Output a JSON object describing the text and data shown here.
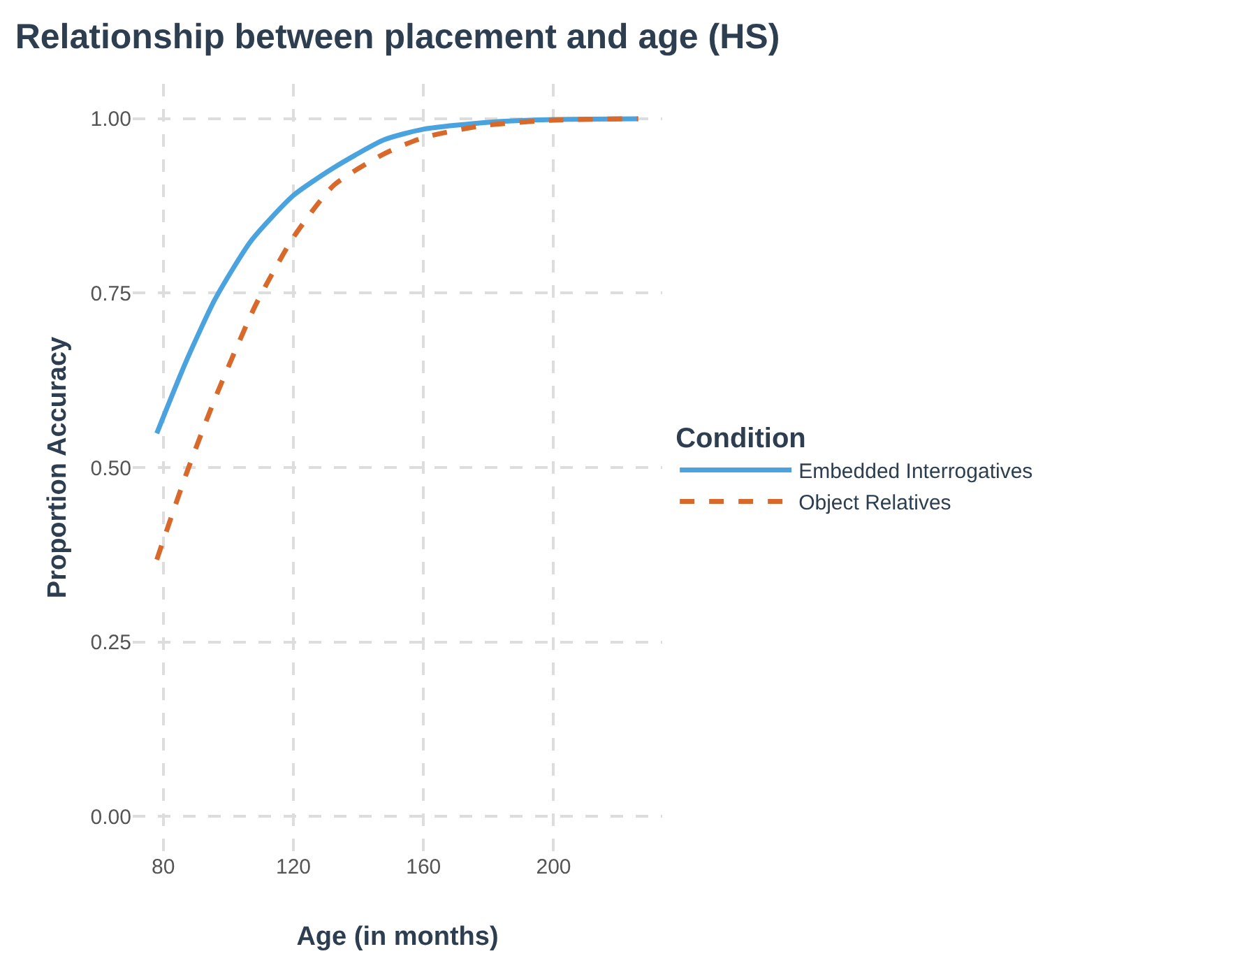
{
  "chart_data": {
    "type": "line",
    "title": "Relationship between placement and age (HS)",
    "xlabel": "Age (in months)",
    "ylabel": "Proportion Accuracy",
    "legend_title": "Condition",
    "legend": "right",
    "grid": true,
    "marker": "none",
    "xlim": [
      70.6,
      233.4
    ],
    "xticks": [
      80,
      120,
      160,
      200
    ],
    "ylim": [
      -0.05,
      1.05
    ],
    "yticks": [
      {
        "value": 0,
        "label": "0.00"
      },
      {
        "value": 0.25,
        "label": "0.25"
      },
      {
        "value": 0.5,
        "label": "0.50"
      },
      {
        "value": 0.75,
        "label": "0.75"
      },
      {
        "value": 1,
        "label": "1.00"
      }
    ],
    "series": [
      {
        "name": "Embedded Interrogatives",
        "color": "#4aa3df",
        "line_style": "solid",
        "x": [
          78,
          87,
          96,
          107,
          120,
          132.5,
          148,
          160,
          180,
          200,
          226
        ],
        "values": [
          0.549,
          0.652,
          0.742,
          0.825,
          0.89,
          0.93,
          0.97,
          0.985,
          0.995,
          0.999,
          1.0
        ]
      },
      {
        "name": "Object Relatives",
        "color": "#d9692a",
        "line_style": "dashed",
        "x": [
          78,
          87,
          96,
          108.5,
          120,
          132.5,
          148,
          160,
          178,
          200,
          226
        ],
        "values": [
          0.368,
          0.49,
          0.6,
          0.734,
          0.83,
          0.905,
          0.95,
          0.973,
          0.99,
          0.998,
          1.0
        ]
      }
    ]
  }
}
